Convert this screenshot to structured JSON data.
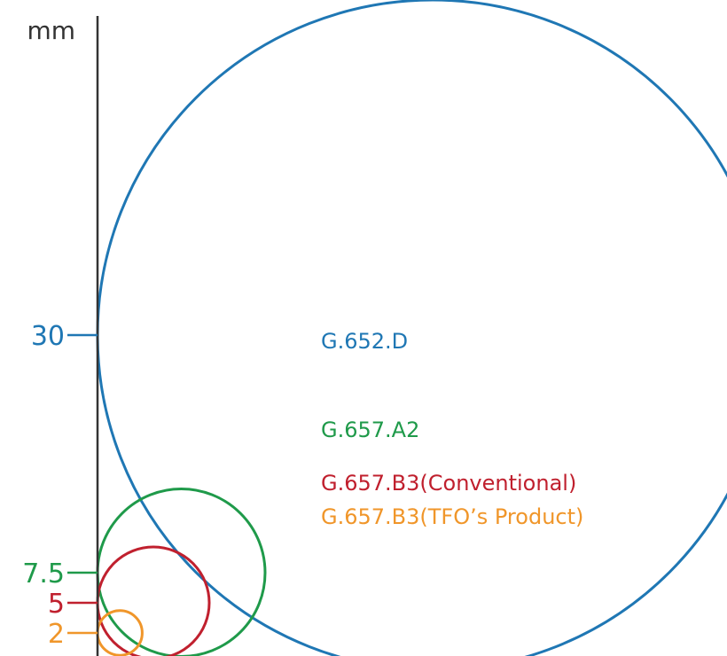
{
  "axis": {
    "unit": "mm",
    "color": "#333333"
  },
  "ticks": [
    {
      "value": 30,
      "label": "30",
      "color": "#1f77b4"
    },
    {
      "value": 7.5,
      "label": "7.5",
      "color": "#1f9a4a"
    },
    {
      "value": 5,
      "label": "5",
      "color": "#c0202e"
    },
    {
      "value": 2,
      "label": "2",
      "color": "#f0962a"
    }
  ],
  "legend": [
    {
      "label": "G.652.D",
      "color": "#1f77b4"
    },
    {
      "label": "G.657.A2",
      "color": "#1f9a4a"
    },
    {
      "label": "G.657.B3(Conventional)",
      "color": "#c0202e"
    },
    {
      "label": "G.657.B3(TFO’s Product)",
      "color": "#f0962a"
    }
  ],
  "circles": [
    {
      "radius_mm": 30,
      "color": "#1f77b4"
    },
    {
      "radius_mm": 7.5,
      "color": "#1f9a4a"
    },
    {
      "radius_mm": 5,
      "color": "#c0202e"
    },
    {
      "radius_mm": 2,
      "color": "#f0962a"
    }
  ]
}
